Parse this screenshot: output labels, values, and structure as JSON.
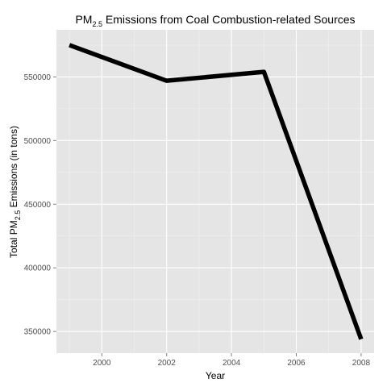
{
  "chart_data": {
    "type": "line",
    "title": {
      "prefix": "PM",
      "subscript": "2.5",
      "suffix": " Emissions from Coal Combustion-related Sources"
    },
    "xlabel": "Year",
    "ylabel": {
      "prefix": "Total PM",
      "subscript": "2.5",
      "suffix": " Emissions (in tons)"
    },
    "x": [
      1999,
      2002,
      2005,
      2008
    ],
    "series": [
      {
        "values": [
          575000,
          547000,
          554000,
          344000
        ]
      }
    ],
    "xlim": [
      1998.6,
      2008.4
    ],
    "ylim": [
      333000,
      587000
    ],
    "xticks": [
      2000,
      2002,
      2004,
      2006,
      2008
    ],
    "yticks": [
      350000,
      400000,
      450000,
      500000,
      550000
    ],
    "grid": true,
    "colors": {
      "panel_background": "#e5e5e5",
      "grid_major": "#ffffff",
      "grid_minor": "#f2f2f2",
      "line": "#000000"
    }
  }
}
